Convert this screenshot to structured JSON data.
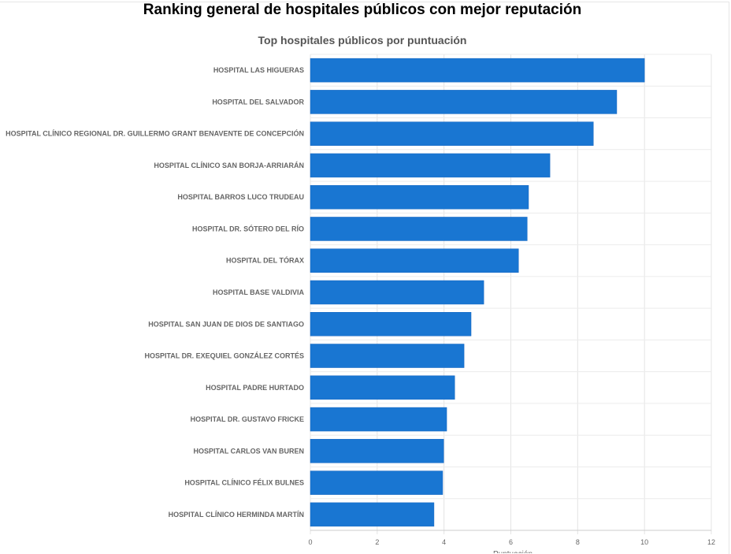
{
  "page": {
    "title": "Ranking general de hospitales públicos con mejor reputación"
  },
  "chart_data": {
    "type": "bar",
    "orientation": "horizontal",
    "title": "Top hospitales públicos por puntuación",
    "xlabel": "Puntuación",
    "ylabel": "",
    "xlim": [
      0,
      12
    ],
    "xticks": [
      0,
      2,
      4,
      6,
      8,
      10,
      12
    ],
    "grid": true,
    "color": "#1976d2",
    "categories": [
      "HOSPITAL LAS HIGUERAS",
      "HOSPITAL DEL SALVADOR",
      "HOSPITAL CLÍNICO REGIONAL DR. GUILLERMO GRANT BENAVENTE DE CONCEPCIÓN",
      "HOSPITAL CLÍNICO SAN BORJA-ARRIARÁN",
      "HOSPITAL BARROS LUCO TRUDEAU",
      "HOSPITAL DR. SÓTERO DEL RÍO",
      "HOSPITAL DEL TÓRAX",
      "HOSPITAL BASE VALDIVIA",
      "HOSPITAL SAN JUAN DE DIOS DE SANTIAGO",
      "HOSPITAL DR. EXEQUIEL GONZÁLEZ CORTÉS",
      "HOSPITAL PADRE HURTADO",
      "HOSPITAL DR. GUSTAVO FRICKE",
      "HOSPITAL CARLOS VAN BUREN",
      "HOSPITAL CLÍNICO FÉLIX BULNES",
      "HOSPITAL CLÍNICO HERMINDA MARTÍN"
    ],
    "values": [
      10.0,
      9.17,
      8.47,
      7.17,
      6.53,
      6.49,
      6.23,
      5.19,
      4.81,
      4.6,
      4.32,
      4.08,
      3.99,
      3.96,
      3.7
    ]
  }
}
